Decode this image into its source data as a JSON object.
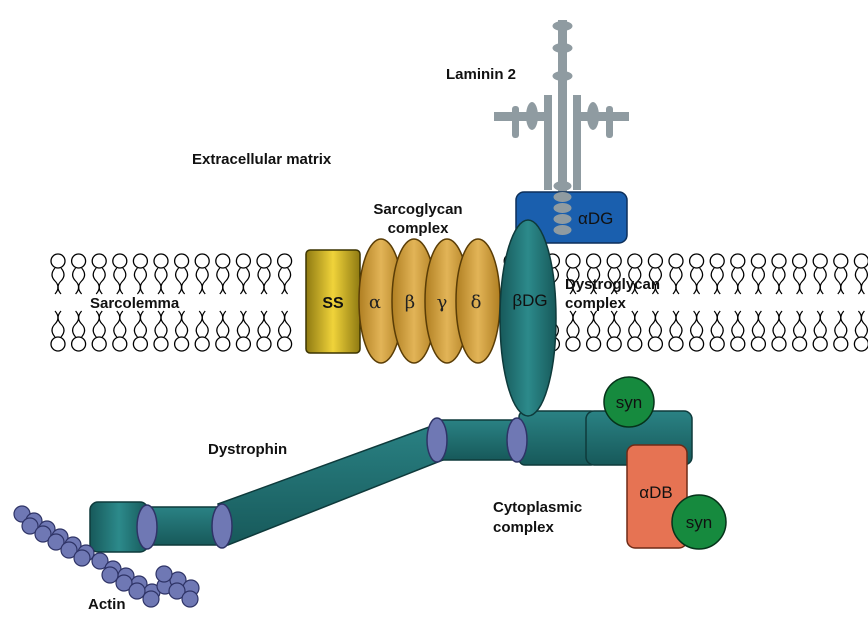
{
  "labels": {
    "laminin": "Laminin 2",
    "extracellular": "Extracellular matrix",
    "sarcoglycan_line1": "Sarcoglycan",
    "sarcoglycan_line2": "complex",
    "sarcolemma": "Sarcolemma",
    "dystroglycan_line1": "Dystroglycan",
    "dystroglycan_line2": "complex",
    "dystrophin": "Dystrophin",
    "cytoplasmic_line1": "Cytoplasmic",
    "cytoplasmic_line2": "complex",
    "actin": "Actin"
  },
  "proteins": {
    "ss": "SS",
    "alpha": "α",
    "beta": "β",
    "gamma": "γ",
    "delta": "δ",
    "beta_dg": "βDG",
    "alpha_dg": "αDG",
    "alpha_db": "αDB",
    "syn_top": "syn",
    "syn_bottom": "syn"
  },
  "colors": {
    "teal": "#1e6b6c",
    "blue": "#1a5fae",
    "gold": "#d6a437",
    "sarcospan": "#d9b825",
    "salmon": "#e67353",
    "green": "#168a3e",
    "periwinkle": "#6f78b4",
    "laminin_gray": "#8f9ba1"
  }
}
